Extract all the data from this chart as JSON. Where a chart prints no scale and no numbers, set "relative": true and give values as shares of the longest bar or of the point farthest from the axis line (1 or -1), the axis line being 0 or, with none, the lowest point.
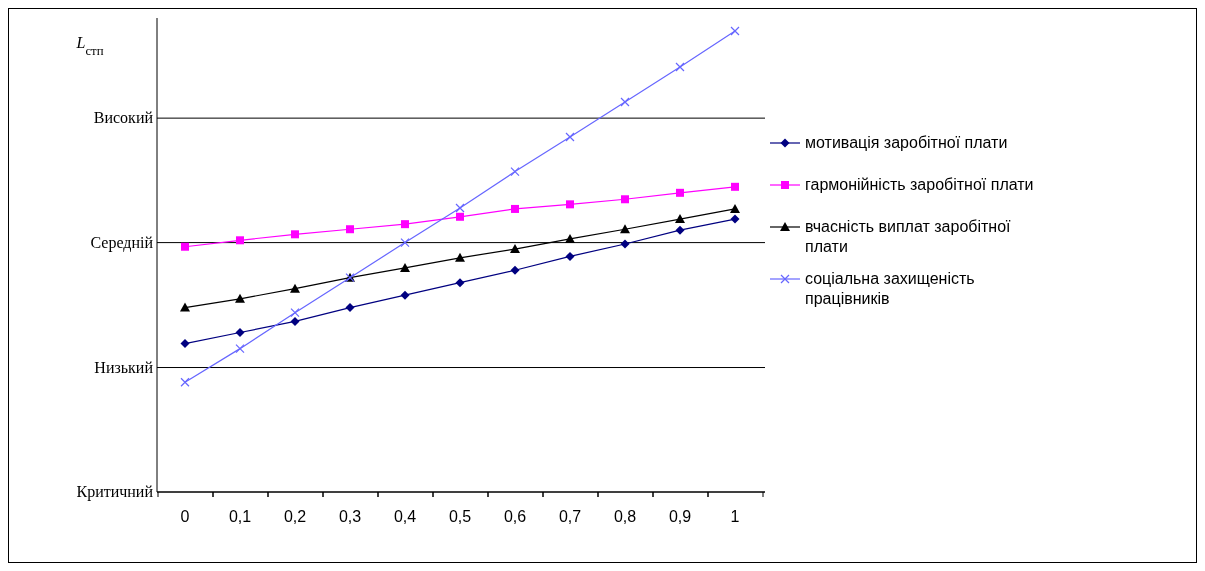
{
  "chart_data": {
    "type": "line",
    "ylabel": "L$_{стп}$",
    "relative": true,
    "categories": [
      "0",
      "0,1",
      "0,2",
      "0,3",
      "0,4",
      "0,5",
      "0,6",
      "0,7",
      "0,8",
      "0,9",
      "1"
    ],
    "ref_lines": [
      {
        "axis": "y",
        "value": 0,
        "label": "Критичний"
      },
      {
        "axis": "y",
        "value": 0.27,
        "label": "Низький"
      },
      {
        "axis": "y",
        "value": 0.541,
        "label": "Середній"
      },
      {
        "axis": "y",
        "value": 0.811,
        "label": "Високий"
      }
    ],
    "legend": "right",
    "series": [
      {
        "name": "мотивація заробітної плати",
        "color": "#000080",
        "marker": "diamond",
        "values": [
          0.322,
          0.346,
          0.37,
          0.4,
          0.427,
          0.454,
          0.481,
          0.511,
          0.538,
          0.568,
          0.592
        ]
      },
      {
        "name": "гармонійність заробітної плати",
        "color": "#ff00ff",
        "marker": "square",
        "values": [
          0.532,
          0.546,
          0.559,
          0.57,
          0.581,
          0.597,
          0.614,
          0.624,
          0.635,
          0.649,
          0.662
        ]
      },
      {
        "name": "вчасність виплат заробітної плати",
        "color": "#000000",
        "marker": "triangle",
        "values": [
          0.4,
          0.419,
          0.441,
          0.465,
          0.486,
          0.508,
          0.527,
          0.549,
          0.57,
          0.592,
          0.614
        ]
      },
      {
        "name": "соціальна захищеність працівників",
        "color": "#6666ff",
        "marker": "cross",
        "values": [
          0.238,
          0.311,
          0.389,
          0.465,
          0.541,
          0.616,
          0.695,
          0.77,
          0.846,
          0.922,
          1
        ]
      }
    ]
  }
}
